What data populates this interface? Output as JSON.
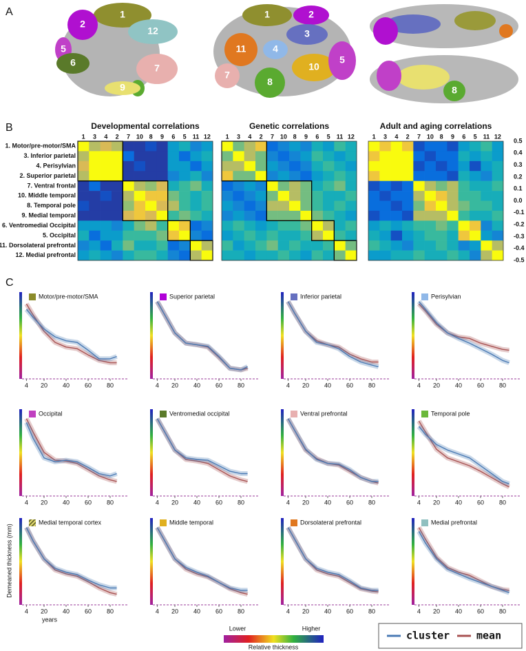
{
  "panel_labels": [
    "A",
    "B",
    "C"
  ],
  "panel_a": {
    "views": [
      [
        "1",
        "2",
        "12",
        "5",
        "6",
        "7",
        "9"
      ],
      [
        "1",
        "2",
        "3",
        "11",
        "4",
        "10",
        "7",
        "5",
        "8"
      ],
      [
        "8"
      ]
    ]
  },
  "panel_b": {
    "type": "heatmap",
    "titles": [
      "Developmental correlations",
      "Genetic correlations",
      "Adult and aging correlations"
    ],
    "column_labels": [
      "1",
      "3",
      "4",
      "2",
      "7",
      "10",
      "8",
      "9",
      "6",
      "5",
      "11",
      "12"
    ],
    "row_labels": [
      "1. Motor/pre-motor/SMA",
      "3. Inferior parietal",
      "4. Perisylvian",
      "2. Superior parietal",
      "7. Ventral frontal",
      "10. Middle temporal",
      "8. Temporal pole",
      "9. Medial temporal",
      "6. Ventromedial Occipital",
      "5. Occipital",
      "11. Dorsolateral prefrontal",
      "12. Medial prefrontal"
    ],
    "clim": [
      -0.5,
      0.5
    ],
    "colorbar_ticks": [
      0.5,
      0.4,
      0.3,
      0.2,
      0.1,
      {
        "value": 0,
        "label": "0.0"
      },
      -0.1,
      -0.2,
      -0.3,
      -0.4,
      -0.5
    ],
    "matrices": [
      [
        [
          0.5,
          0.3,
          0.35,
          0.3,
          -0.45,
          -0.45,
          -0.4,
          -0.45,
          -0.1,
          0.0,
          -0.2,
          -0.1
        ],
        [
          0.3,
          0.5,
          0.5,
          0.5,
          -0.3,
          -0.45,
          -0.45,
          -0.45,
          -0.1,
          -0.3,
          -0.1,
          0.0
        ],
        [
          0.35,
          0.5,
          0.5,
          0.5,
          -0.45,
          -0.4,
          -0.45,
          -0.45,
          -0.1,
          -0.1,
          -0.3,
          -0.1
        ],
        [
          0.3,
          0.5,
          0.5,
          0.5,
          -0.45,
          -0.45,
          -0.45,
          -0.45,
          -0.2,
          -0.1,
          0.0,
          -0.2
        ],
        [
          -0.45,
          -0.3,
          -0.45,
          -0.45,
          0.5,
          0.3,
          0.25,
          0.35,
          0.0,
          0.1,
          0.2,
          0.0
        ],
        [
          -0.45,
          -0.45,
          -0.4,
          -0.45,
          0.3,
          0.5,
          0.4,
          0.4,
          0.2,
          0.1,
          0.0,
          0.1
        ],
        [
          -0.4,
          -0.45,
          -0.45,
          -0.45,
          0.25,
          0.4,
          0.5,
          0.35,
          0.3,
          0.1,
          0.0,
          0.1
        ],
        [
          -0.45,
          -0.45,
          -0.45,
          -0.45,
          0.35,
          0.4,
          0.35,
          0.5,
          0.1,
          0.2,
          0.1,
          0.0
        ],
        [
          -0.1,
          -0.1,
          -0.1,
          -0.2,
          0.0,
          0.2,
          0.3,
          0.1,
          0.5,
          0.4,
          -0.3,
          -0.2
        ],
        [
          0.0,
          -0.3,
          -0.1,
          -0.1,
          0.1,
          0.1,
          0.1,
          0.2,
          0.4,
          0.5,
          -0.2,
          -0.3
        ],
        [
          -0.2,
          -0.1,
          -0.3,
          0.0,
          0.2,
          0.0,
          0.0,
          0.1,
          -0.3,
          -0.2,
          0.5,
          0.3
        ],
        [
          -0.1,
          0.0,
          -0.1,
          -0.2,
          0.0,
          0.1,
          0.1,
          0.0,
          -0.2,
          -0.3,
          0.3,
          0.5
        ]
      ],
      [
        [
          0.5,
          0.2,
          0.3,
          0.4,
          -0.3,
          -0.2,
          -0.1,
          -0.2,
          0.0,
          -0.1,
          0.1,
          0.0
        ],
        [
          0.2,
          0.5,
          0.3,
          0.2,
          -0.2,
          -0.3,
          -0.2,
          -0.1,
          0.1,
          0.0,
          -0.1,
          0.0
        ],
        [
          0.3,
          0.3,
          0.5,
          0.2,
          -0.1,
          -0.2,
          -0.3,
          -0.2,
          0.0,
          0.1,
          0.0,
          -0.1
        ],
        [
          0.4,
          0.2,
          0.2,
          0.5,
          -0.2,
          -0.1,
          -0.2,
          -0.3,
          -0.1,
          0.0,
          0.1,
          0.0
        ],
        [
          -0.3,
          -0.2,
          -0.1,
          -0.2,
          0.5,
          0.2,
          0.3,
          0.2,
          0.0,
          0.1,
          0.2,
          0.0
        ],
        [
          -0.2,
          -0.3,
          -0.2,
          -0.1,
          0.2,
          0.5,
          0.3,
          0.2,
          0.1,
          0.0,
          0.0,
          0.1
        ],
        [
          -0.1,
          -0.2,
          -0.3,
          -0.2,
          0.3,
          0.3,
          0.5,
          0.2,
          0.1,
          0.0,
          0.1,
          0.0
        ],
        [
          -0.2,
          -0.1,
          -0.2,
          -0.3,
          0.2,
          0.2,
          0.2,
          0.5,
          0.2,
          0.1,
          0.0,
          -0.1
        ],
        [
          0.0,
          0.1,
          0.0,
          -0.1,
          0.0,
          0.1,
          0.1,
          0.2,
          0.5,
          0.3,
          0.0,
          0.1
        ],
        [
          -0.1,
          0.0,
          0.1,
          0.0,
          0.1,
          0.0,
          0.0,
          0.1,
          0.3,
          0.5,
          0.1,
          0.0
        ],
        [
          0.1,
          -0.1,
          0.0,
          0.1,
          0.2,
          0.0,
          0.1,
          0.0,
          0.0,
          0.1,
          0.5,
          0.2
        ],
        [
          0.0,
          0.0,
          -0.1,
          0.0,
          0.0,
          0.1,
          0.0,
          -0.1,
          0.1,
          0.0,
          0.2,
          0.5
        ]
      ],
      [
        [
          0.5,
          0.4,
          0.5,
          0.4,
          -0.4,
          -0.3,
          -0.3,
          -0.4,
          -0.1,
          0.0,
          0.1,
          -0.1
        ],
        [
          0.4,
          0.5,
          0.5,
          0.5,
          -0.3,
          -0.4,
          -0.3,
          -0.3,
          0.0,
          -0.1,
          0.0,
          -0.1
        ],
        [
          0.5,
          0.5,
          0.5,
          0.5,
          -0.4,
          -0.3,
          -0.4,
          -0.3,
          -0.1,
          -0.4,
          -0.1,
          0.0
        ],
        [
          0.4,
          0.5,
          0.5,
          0.5,
          -0.3,
          -0.3,
          -0.3,
          -0.4,
          0.0,
          -0.1,
          -0.2,
          0.0
        ],
        [
          -0.4,
          -0.3,
          -0.4,
          -0.3,
          0.5,
          0.3,
          0.2,
          0.3,
          0.1,
          0.0,
          0.0,
          0.1
        ],
        [
          -0.3,
          -0.4,
          -0.3,
          -0.3,
          0.3,
          0.5,
          0.4,
          0.3,
          0.1,
          0.1,
          0.0,
          0.0
        ],
        [
          -0.3,
          -0.3,
          -0.4,
          -0.3,
          0.2,
          0.4,
          0.5,
          0.3,
          0.2,
          0.1,
          0.1,
          0.0
        ],
        [
          -0.4,
          -0.3,
          -0.3,
          -0.4,
          0.3,
          0.3,
          0.3,
          0.5,
          0.1,
          0.0,
          0.0,
          0.1
        ],
        [
          -0.1,
          0.0,
          -0.1,
          0.0,
          0.1,
          0.1,
          0.2,
          0.1,
          0.5,
          0.4,
          -0.2,
          0.0
        ],
        [
          0.0,
          -0.1,
          -0.4,
          -0.1,
          0.0,
          0.1,
          0.1,
          0.0,
          0.4,
          0.5,
          -0.1,
          -0.2
        ],
        [
          0.1,
          0.0,
          -0.1,
          -0.2,
          0.0,
          0.0,
          0.1,
          0.0,
          -0.2,
          -0.1,
          0.5,
          0.3
        ],
        [
          -0.1,
          -0.1,
          0.0,
          0.0,
          0.1,
          0.0,
          0.0,
          0.1,
          0.0,
          -0.2,
          0.3,
          0.5
        ]
      ]
    ]
  },
  "panel_c": {
    "type": "line",
    "x": [
      4,
      10,
      20,
      30,
      40,
      50,
      60,
      70,
      80,
      86
    ],
    "xlim": [
      0,
      90
    ],
    "ylim": [
      0,
      1
    ],
    "xticks": [
      4,
      20,
      40,
      60,
      80
    ],
    "ylabel": "Demeaned thickness (mm)",
    "xlabel": "years",
    "legend": {
      "names": [
        "cluster",
        "mean"
      ],
      "colors": [
        "#4a7ab4",
        "#a85252"
      ]
    },
    "colorbar": {
      "low": "Lower",
      "high": "Higher",
      "label": "Relative thickness"
    },
    "plots": [
      {
        "title": "Motor/pre-motor/SMA",
        "color": "#8b8b2a",
        "values": [
          [
            0.85,
            0.75,
            0.6,
            0.5,
            0.45,
            0.43,
            0.33,
            0.22,
            0.22,
            0.25
          ],
          [
            0.92,
            0.78,
            0.57,
            0.43,
            0.37,
            0.35,
            0.27,
            0.2,
            0.17,
            0.17
          ]
        ]
      },
      {
        "title": "Superior parietal",
        "color": "#b000d8",
        "values": [
          [
            0.95,
            0.8,
            0.55,
            0.42,
            0.4,
            0.38,
            0.25,
            0.1,
            0.08,
            0.12
          ],
          [
            0.95,
            0.8,
            0.55,
            0.42,
            0.4,
            0.37,
            0.24,
            0.1,
            0.08,
            0.1
          ]
        ]
      },
      {
        "title": "Inferior parietal",
        "color": "#6670c0",
        "values": [
          [
            0.95,
            0.8,
            0.57,
            0.43,
            0.4,
            0.35,
            0.25,
            0.18,
            0.14,
            0.12
          ],
          [
            0.95,
            0.8,
            0.57,
            0.45,
            0.4,
            0.37,
            0.28,
            0.22,
            0.18,
            0.18
          ]
        ]
      },
      {
        "title": "Perisylvian",
        "color": "#90b8e8",
        "values": [
          [
            0.95,
            0.85,
            0.68,
            0.55,
            0.48,
            0.42,
            0.35,
            0.28,
            0.2,
            0.17
          ],
          [
            0.92,
            0.83,
            0.66,
            0.55,
            0.5,
            0.48,
            0.42,
            0.38,
            0.34,
            0.33
          ]
        ]
      },
      {
        "title": "Occipital",
        "color": "#c040c0",
        "values": [
          [
            0.9,
            0.7,
            0.45,
            0.4,
            0.42,
            0.4,
            0.33,
            0.25,
            0.22,
            0.25
          ],
          [
            0.95,
            0.78,
            0.52,
            0.42,
            0.41,
            0.38,
            0.3,
            0.22,
            0.17,
            0.15
          ]
        ]
      },
      {
        "title": "Ventromedial occipital",
        "color": "#5a7a2a",
        "values": [
          [
            0.95,
            0.8,
            0.55,
            0.45,
            0.43,
            0.42,
            0.35,
            0.28,
            0.25,
            0.25
          ],
          [
            0.95,
            0.8,
            0.55,
            0.43,
            0.41,
            0.38,
            0.3,
            0.22,
            0.17,
            0.15
          ]
        ]
      },
      {
        "title": "Ventral prefrontal",
        "color": "#e8b0b0",
        "values": [
          [
            0.95,
            0.8,
            0.56,
            0.43,
            0.38,
            0.37,
            0.3,
            0.2,
            0.15,
            0.15
          ],
          [
            0.95,
            0.8,
            0.55,
            0.44,
            0.38,
            0.36,
            0.28,
            0.2,
            0.15,
            0.13
          ]
        ]
      },
      {
        "title": "Temporal pole",
        "color": "#6ab83a",
        "values": [
          [
            0.85,
            0.75,
            0.62,
            0.55,
            0.5,
            0.45,
            0.35,
            0.25,
            0.15,
            0.12
          ],
          [
            0.92,
            0.78,
            0.56,
            0.45,
            0.4,
            0.35,
            0.28,
            0.2,
            0.12,
            0.08
          ]
        ]
      },
      {
        "title": "Medial temporal cortex",
        "color": "#e8e070",
        "values": [
          [
            0.95,
            0.78,
            0.55,
            0.43,
            0.38,
            0.35,
            0.28,
            0.22,
            0.18,
            0.18
          ],
          [
            0.95,
            0.78,
            0.55,
            0.41,
            0.36,
            0.33,
            0.26,
            0.18,
            0.12,
            0.1
          ]
        ]
      },
      {
        "title": "Middle temporal",
        "color": "#e0b020",
        "values": [
          [
            0.95,
            0.8,
            0.55,
            0.44,
            0.38,
            0.33,
            0.25,
            0.18,
            0.15,
            0.15
          ],
          [
            0.95,
            0.8,
            0.55,
            0.42,
            0.36,
            0.32,
            0.25,
            0.17,
            0.12,
            0.1
          ]
        ]
      },
      {
        "title": "Dorsolateral prefrontal",
        "color": "#e07820",
        "values": [
          [
            0.95,
            0.8,
            0.55,
            0.43,
            0.38,
            0.35,
            0.27,
            0.18,
            0.15,
            0.15
          ],
          [
            0.95,
            0.8,
            0.55,
            0.41,
            0.36,
            0.33,
            0.25,
            0.17,
            0.14,
            0.13
          ]
        ]
      },
      {
        "title": "Medial prefrontal",
        "color": "#90c0c0",
        "values": [
          [
            0.9,
            0.75,
            0.55,
            0.42,
            0.36,
            0.3,
            0.25,
            0.2,
            0.15,
            0.12
          ],
          [
            0.95,
            0.8,
            0.57,
            0.44,
            0.38,
            0.34,
            0.27,
            0.2,
            0.16,
            0.15
          ]
        ]
      }
    ]
  }
}
